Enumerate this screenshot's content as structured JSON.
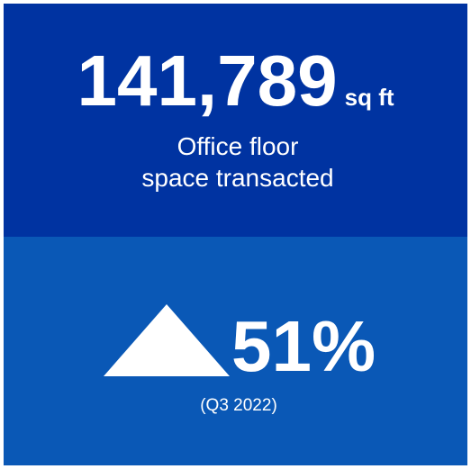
{
  "headline": {
    "value": "141,789",
    "unit": "sq ft",
    "label_lines": [
      "Office floor",
      "space transacted"
    ]
  },
  "change": {
    "value": "51%",
    "period": "(Q3 2022)"
  }
}
